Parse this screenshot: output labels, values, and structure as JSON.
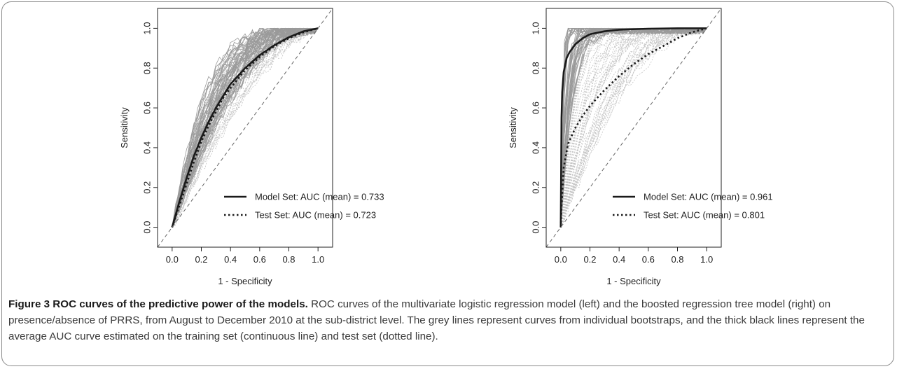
{
  "caption": {
    "title": "Figure 3 ROC curves of the predictive power of the models.",
    "text": "ROC curves of the multivariate logistic regression model (left) and the boosted regression tree model (right) on presence/absence of PRRS, from August to December 2010 at the sub-district level. The grey lines represent curves from individual bootstraps, and the thick black lines represent the average AUC curve estimated on the training set (continuous line) and test set (dotted line)."
  },
  "colors": {
    "model_line": "#1a1a1a",
    "test_line": "#1a1a1a",
    "bootstrap_model": "#9a9a9a",
    "bootstrap_test": "#c4c4c4",
    "diagonal": "#666666"
  },
  "chart_data": [
    {
      "type": "line",
      "xlabel": "1 - Specificity",
      "ylabel": "Sensitivity",
      "xlim": [
        -0.1,
        1.1
      ],
      "ylim": [
        -0.1,
        1.1
      ],
      "x_ticks": [
        "0.0",
        "0.2",
        "0.4",
        "0.6",
        "0.8",
        "1.0"
      ],
      "y_ticks": [
        "0.0",
        "0.2",
        "0.4",
        "0.6",
        "0.8",
        "1.0"
      ],
      "legend_position": "bottom-right",
      "legend": [
        "Model Set: AUC (mean) = 0.733",
        "Test Set: AUC  (mean) = 0.723"
      ],
      "series": [
        {
          "name": "Model Set: AUC (mean) = 0.733",
          "style": "solid",
          "x": [
            0,
            0.05,
            0.1,
            0.15,
            0.2,
            0.25,
            0.3,
            0.35,
            0.4,
            0.5,
            0.6,
            0.7,
            0.8,
            0.9,
            1.0
          ],
          "y": [
            0,
            0.13,
            0.25,
            0.36,
            0.45,
            0.53,
            0.6,
            0.66,
            0.72,
            0.8,
            0.865,
            0.915,
            0.955,
            0.985,
            1.0
          ]
        },
        {
          "name": "Test Set: AUC  (mean) = 0.723",
          "style": "dotted",
          "x": [
            0,
            0.05,
            0.1,
            0.15,
            0.2,
            0.25,
            0.3,
            0.35,
            0.4,
            0.5,
            0.6,
            0.7,
            0.8,
            0.9,
            1.0
          ],
          "y": [
            0,
            0.11,
            0.22,
            0.33,
            0.43,
            0.51,
            0.58,
            0.65,
            0.7,
            0.79,
            0.855,
            0.91,
            0.95,
            0.98,
            1.0
          ]
        },
        {
          "name": "",
          "style": "dashed-diagonal",
          "x": [
            -0.1,
            1.1
          ],
          "y": [
            -0.1,
            1.1
          ]
        }
      ],
      "bootstraps": {
        "model_auc_range": [
          0.66,
          0.82
        ],
        "test_auc_range": [
          0.6,
          0.8
        ]
      }
    },
    {
      "type": "line",
      "xlabel": "1 - Specificity",
      "ylabel": "Sensitivity",
      "xlim": [
        -0.1,
        1.1
      ],
      "ylim": [
        -0.1,
        1.1
      ],
      "x_ticks": [
        "0.0",
        "0.2",
        "0.4",
        "0.6",
        "0.8",
        "1.0"
      ],
      "y_ticks": [
        "0.0",
        "0.2",
        "0.4",
        "0.6",
        "0.8",
        "1.0"
      ],
      "legend_position": "bottom-right",
      "legend": [
        "Model Set: AUC (mean) = 0.961",
        "Test Set: AUC  (mean) = 0.801"
      ],
      "series": [
        {
          "name": "Model Set: AUC (mean) = 0.961",
          "style": "solid",
          "x": [
            0,
            0.005,
            0.01,
            0.02,
            0.04,
            0.06,
            0.1,
            0.15,
            0.2,
            0.3,
            0.4,
            0.6,
            0.8,
            1.0
          ],
          "y": [
            0,
            0.55,
            0.68,
            0.78,
            0.85,
            0.88,
            0.92,
            0.95,
            0.97,
            0.985,
            0.993,
            0.998,
            1.0,
            1.0
          ]
        },
        {
          "name": "Test Set: AUC  (mean) = 0.801",
          "style": "dotted",
          "x": [
            0,
            0.005,
            0.02,
            0.05,
            0.1,
            0.15,
            0.2,
            0.3,
            0.4,
            0.5,
            0.6,
            0.7,
            0.8,
            0.9,
            1.0
          ],
          "y": [
            0,
            0.1,
            0.3,
            0.42,
            0.5,
            0.56,
            0.61,
            0.69,
            0.76,
            0.82,
            0.87,
            0.91,
            0.95,
            0.98,
            1.0
          ]
        },
        {
          "name": "",
          "style": "dashed-diagonal",
          "x": [
            -0.1,
            1.1
          ],
          "y": [
            -0.1,
            1.1
          ]
        }
      ],
      "bootstraps": {
        "model_auc_range": [
          0.92,
          0.99
        ],
        "test_auc_range": [
          0.65,
          0.92
        ]
      }
    }
  ]
}
